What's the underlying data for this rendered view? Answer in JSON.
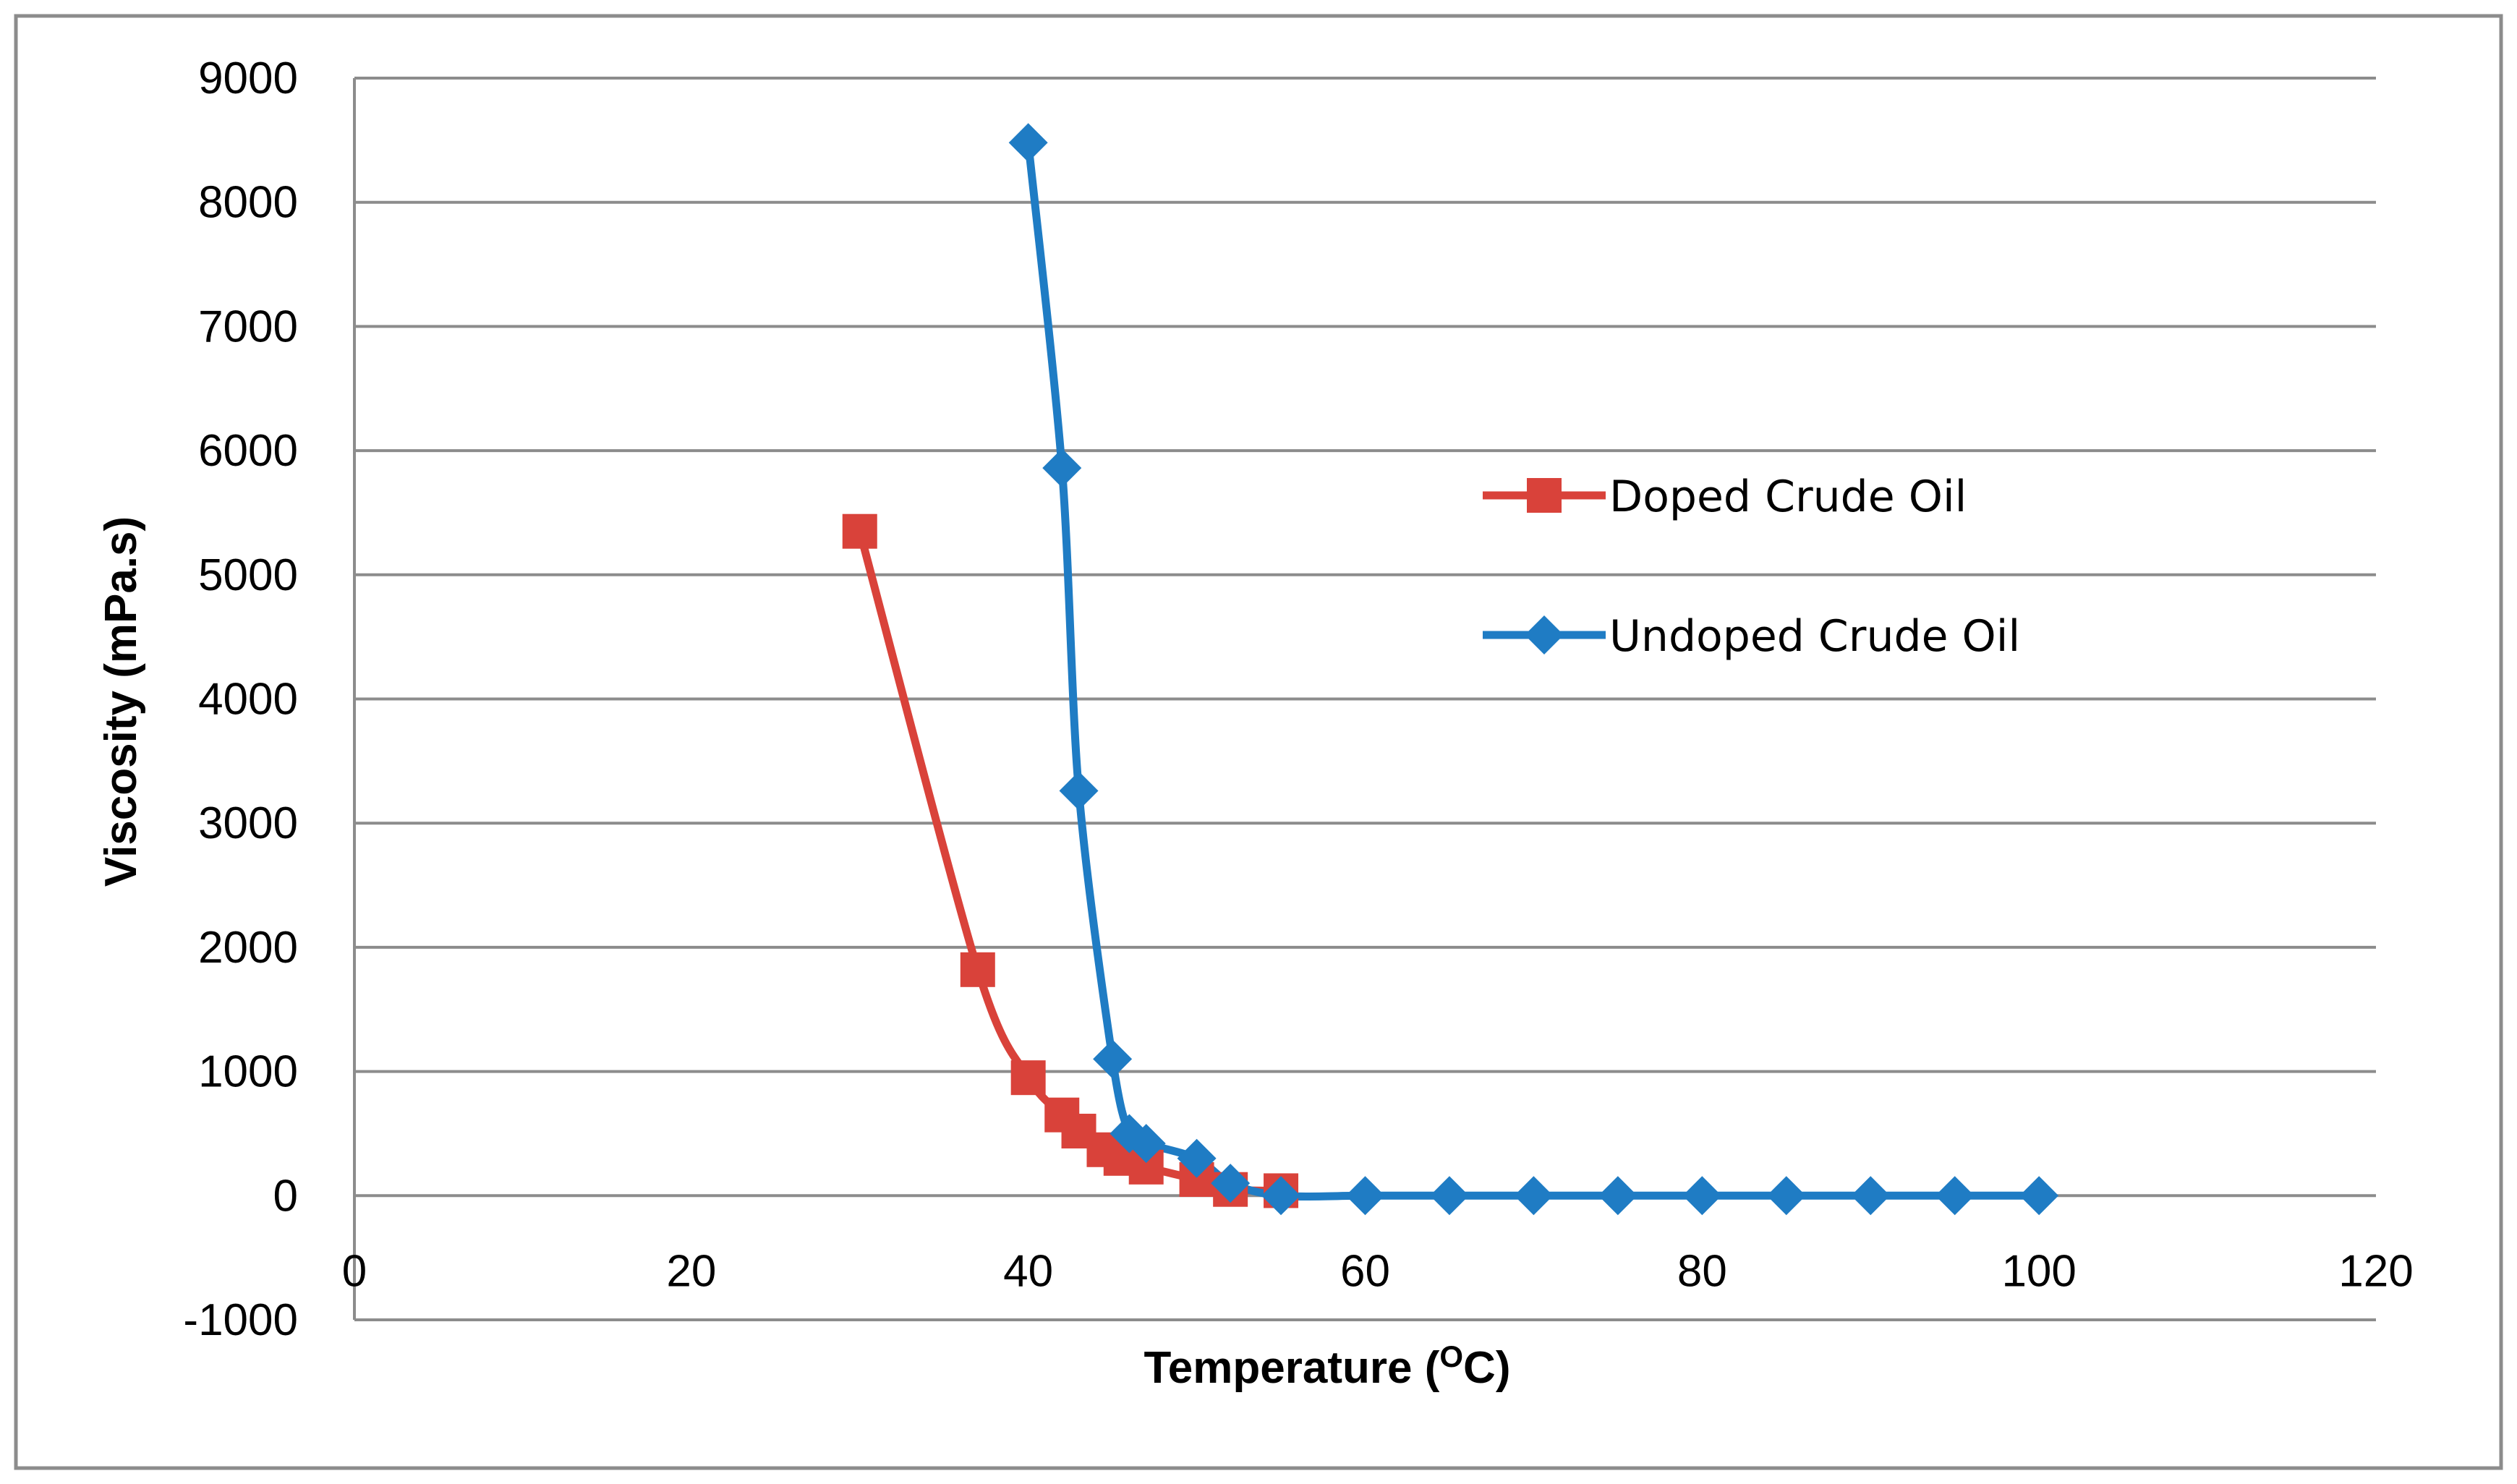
{
  "chart_data": {
    "type": "line",
    "title": "",
    "xlabel": "Temperature (",
    "xlabel_sup": "O",
    "xlabel_suffix": "C)",
    "ylabel": "Viscosity (mPa.s)",
    "xlim": [
      0,
      120
    ],
    "ylim": [
      -1000,
      9000
    ],
    "xticks": [
      0,
      20,
      40,
      60,
      80,
      100,
      120
    ],
    "yticks": [
      -1000,
      0,
      1000,
      2000,
      3000,
      4000,
      5000,
      6000,
      7000,
      8000,
      9000
    ],
    "grid": "horizontal",
    "legend_position": "upper-right-center",
    "series": [
      {
        "name": "Doped Crude Oil",
        "color": "#d9423a",
        "marker": "square",
        "x": [
          30,
          37,
          40,
          42,
          43,
          44.5,
          45.5,
          47,
          50,
          52,
          55
        ],
        "y": [
          5350,
          1820,
          950,
          650,
          520,
          370,
          300,
          230,
          130,
          50,
          40
        ]
      },
      {
        "name": "Undoped Crude Oil",
        "color": "#1f7cc4",
        "marker": "diamond",
        "x": [
          40,
          42,
          43,
          45,
          46,
          47,
          50,
          52,
          55,
          60,
          65,
          70,
          75,
          80,
          85,
          90,
          95,
          100
        ],
        "y": [
          8480,
          5860,
          3260,
          1100,
          500,
          420,
          300,
          100,
          0,
          0,
          0,
          0,
          0,
          0,
          0,
          0,
          0,
          0
        ]
      }
    ]
  }
}
